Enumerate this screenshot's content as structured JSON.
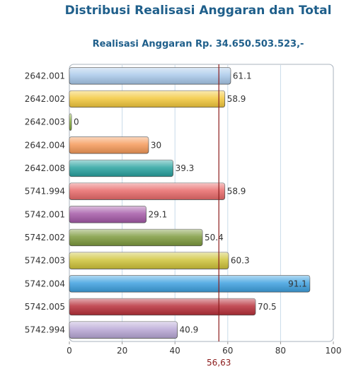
{
  "title": "Distribusi Realisasi Anggaran dan Total",
  "subtitle": "Realisasi Anggaran Rp. 34.650.503.523,-",
  "chart_data": {
    "type": "bar",
    "orientation": "horizontal",
    "categories": [
      "2642.001",
      "2642.002",
      "2642.003",
      "2642.004",
      "2642.008",
      "5741.994",
      "5742.001",
      "5742.002",
      "5742.003",
      "5742.004",
      "5742.005",
      "5742.994"
    ],
    "values": [
      61.1,
      58.9,
      0,
      30,
      39.3,
      58.9,
      29.1,
      50.4,
      60.3,
      91.1,
      70.5,
      40.9
    ],
    "value_labels": [
      "61.1",
      "58.9",
      "0",
      "30",
      "39.3",
      "58.9",
      "29.1",
      "50.4",
      "60.3",
      "91.1",
      "70.5",
      "40.9"
    ],
    "colors": [
      "#a9c9ea",
      "#f3c83d",
      "#8ab53a",
      "#f59a5a",
      "#2aa3a0",
      "#e86a6a",
      "#a55aa8",
      "#7d9a3d",
      "#cfc43a",
      "#3fa1e0",
      "#b8303a",
      "#b9a8d6"
    ],
    "xlim": [
      0,
      100
    ],
    "xticks": [
      0,
      20,
      40,
      60,
      80,
      100
    ],
    "xtick_labels": [
      "0",
      "20",
      "40",
      "60",
      "80",
      "100"
    ],
    "reference_line": {
      "value": 56.63,
      "label": "56,63",
      "color": "#8b1a1a"
    },
    "grid": true
  }
}
